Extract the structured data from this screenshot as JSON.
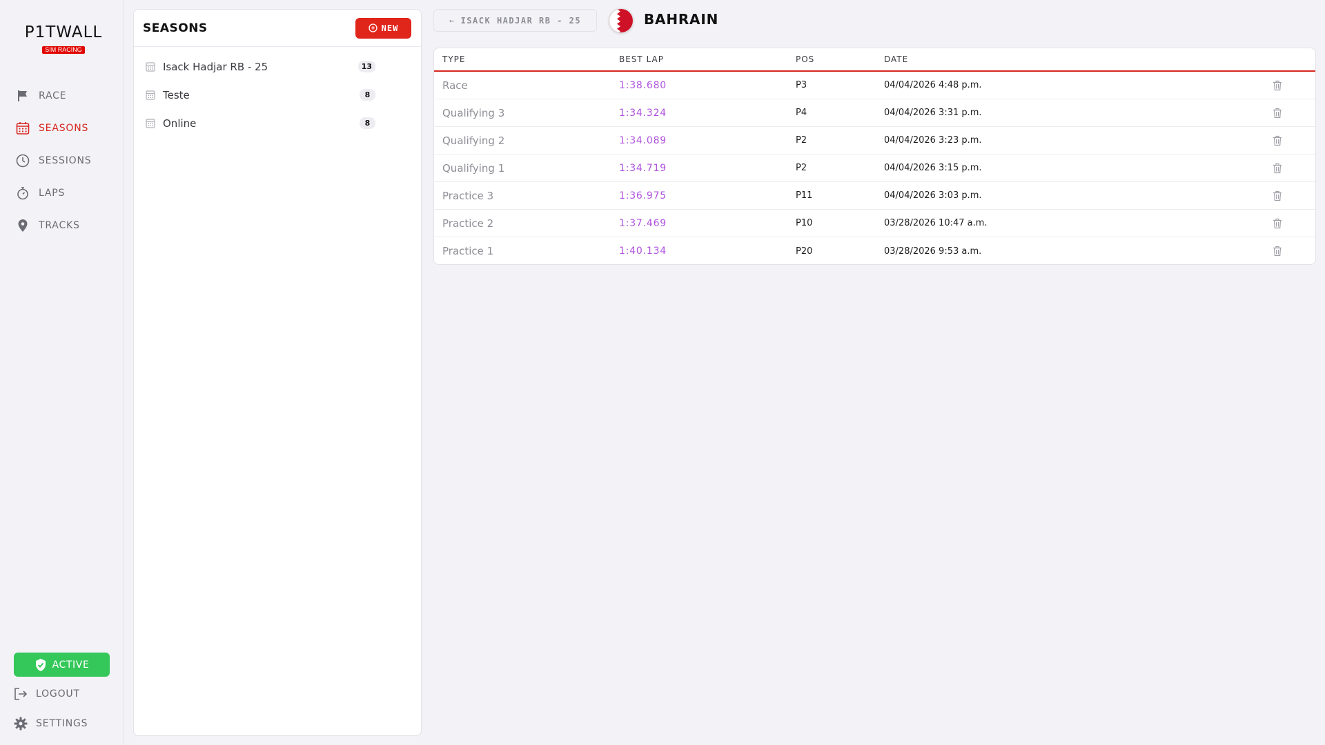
{
  "app": {
    "logo_main": "P1TWALL",
    "logo_sub": "SIM RACING"
  },
  "nav": {
    "items": [
      {
        "label": "RACE",
        "icon": "flag-icon",
        "active": false
      },
      {
        "label": "SEASONS",
        "icon": "calendar-icon",
        "active": true
      },
      {
        "label": "SESSIONS",
        "icon": "clock-icon",
        "active": false
      },
      {
        "label": "LAPS",
        "icon": "stopwatch-icon",
        "active": false
      },
      {
        "label": "TRACKS",
        "icon": "location-pin-icon",
        "active": false
      }
    ],
    "status_label": "ACTIVE",
    "logout_label": "LOGOUT",
    "settings_label": "SETTINGS"
  },
  "seasons": {
    "title": "SEASONS",
    "new_label": "NEW",
    "items": [
      {
        "name": "Isack Hadjar RB - 25",
        "count": "13"
      },
      {
        "name": "Teste",
        "count": "8"
      },
      {
        "name": "Online",
        "count": "8"
      }
    ]
  },
  "header": {
    "back_label": "ISACK HADJAR RB - 25",
    "track_title": "BAHRAIN"
  },
  "table": {
    "columns": [
      "TYPE",
      "BEST LAP",
      "POS",
      "DATE"
    ],
    "rows": [
      {
        "type": "Race",
        "best_lap": "1:38.680",
        "pos": "P3",
        "date": "04/04/2026 4:48 p.m."
      },
      {
        "type": "Qualifying 3",
        "best_lap": "1:34.324",
        "pos": "P4",
        "date": "04/04/2026 3:31 p.m."
      },
      {
        "type": "Qualifying 2",
        "best_lap": "1:34.089",
        "pos": "P2",
        "date": "04/04/2026 3:23 p.m."
      },
      {
        "type": "Qualifying 1",
        "best_lap": "1:34.719",
        "pos": "P2",
        "date": "04/04/2026 3:15 p.m."
      },
      {
        "type": "Practice 3",
        "best_lap": "1:36.975",
        "pos": "P11",
        "date": "04/04/2026 3:03 p.m."
      },
      {
        "type": "Practice 2",
        "best_lap": "1:37.469",
        "pos": "P10",
        "date": "03/28/2026 10:47 a.m."
      },
      {
        "type": "Practice 1",
        "best_lap": "1:40.134",
        "pos": "P20",
        "date": "03/28/2026 9:53 a.m."
      }
    ]
  },
  "colors": {
    "accent": "#d7261e",
    "active_green": "#34c759",
    "lap_purple": "#af52de"
  }
}
